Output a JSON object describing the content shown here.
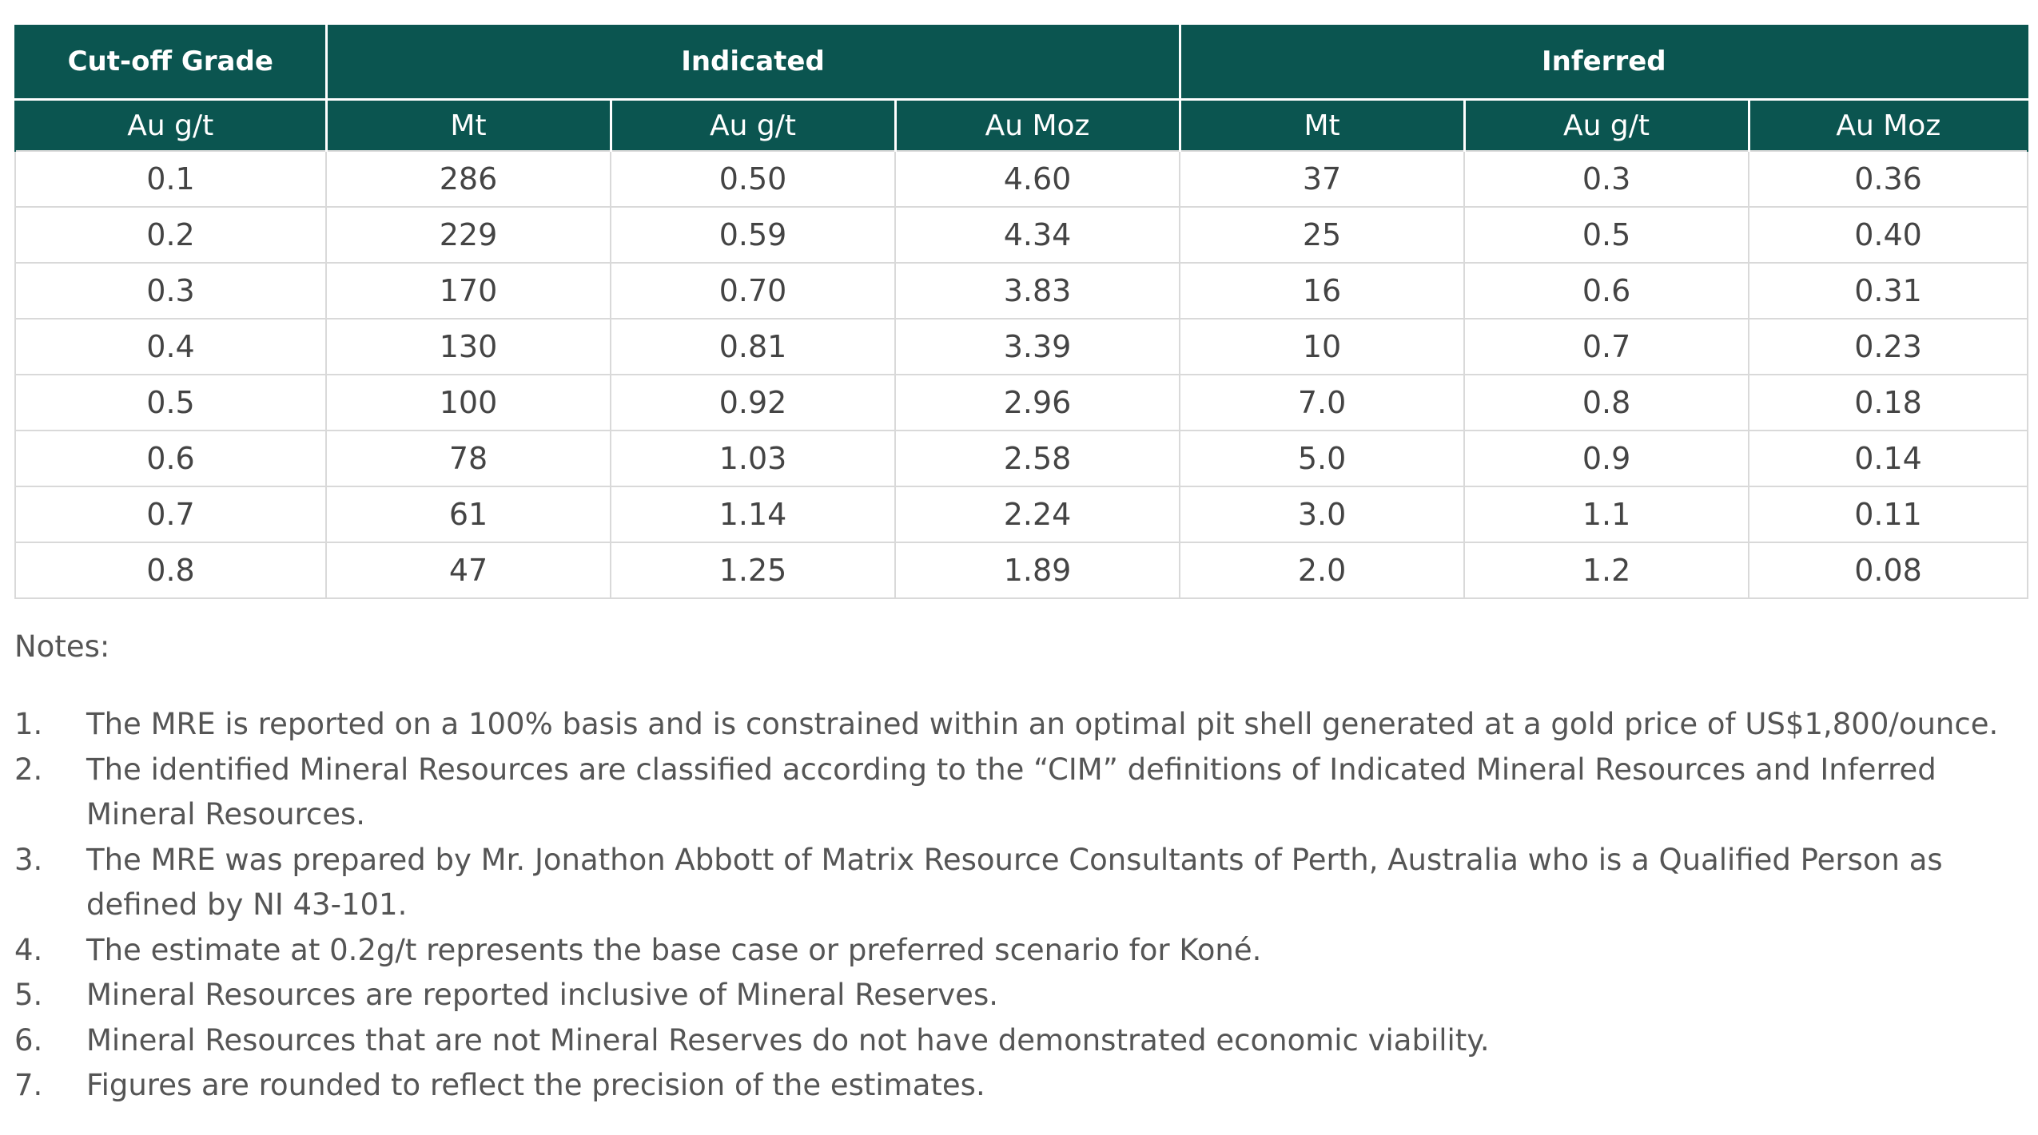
{
  "table": {
    "header_groups": [
      {
        "label": "Cut-off Grade"
      },
      {
        "label": "Indicated"
      },
      {
        "label": "Inferred"
      }
    ],
    "subheaders": [
      "Au g/t",
      "Mt",
      "Au g/t",
      "Au Moz",
      "Mt",
      "Au g/t",
      "Au Moz"
    ],
    "rows": [
      [
        "0.1",
        "286",
        "0.50",
        "4.60",
        "37",
        "0.3",
        "0.36"
      ],
      [
        "0.2",
        "229",
        "0.59",
        "4.34",
        "25",
        "0.5",
        "0.40"
      ],
      [
        "0.3",
        "170",
        "0.70",
        "3.83",
        "16",
        "0.6",
        "0.31"
      ],
      [
        "0.4",
        "130",
        "0.81",
        "3.39",
        "10",
        "0.7",
        "0.23"
      ],
      [
        "0.5",
        "100",
        "0.92",
        "2.96",
        "7.0",
        "0.8",
        "0.18"
      ],
      [
        "0.6",
        "78",
        "1.03",
        "2.58",
        "5.0",
        "0.9",
        "0.14"
      ],
      [
        "0.7",
        "61",
        "1.14",
        "2.24",
        "3.0",
        "1.1",
        "0.11"
      ],
      [
        "0.8",
        "47",
        "1.25",
        "1.89",
        "2.0",
        "1.2",
        "0.08"
      ]
    ]
  },
  "notes": {
    "title": "Notes:",
    "items": [
      {
        "num": "1.",
        "text": "The MRE is reported on a 100% basis and is constrained within an optimal pit shell generated at a gold price of US$1,800/ounce."
      },
      {
        "num": "2.",
        "text": "The identified Mineral Resources are classified according to the “CIM” definitions of Indicated Mineral Resources and Inferred Mineral Resources."
      },
      {
        "num": "3.",
        "text": "The MRE was prepared by Mr. Jonathon Abbott of Matrix Resource Consultants of Perth, Australia who is a Qualified Person as defined by NI 43-101."
      },
      {
        "num": "4.",
        "text": "The estimate at 0.2g/t represents the base case or preferred scenario for Koné."
      },
      {
        "num": "5.",
        "text": "Mineral Resources are reported inclusive of Mineral Reserves."
      },
      {
        "num": "6.",
        "text": "Mineral Resources that are not Mineral Reserves do not have demonstrated economic viability."
      },
      {
        "num": "7.",
        "text": "Figures are rounded to reflect the precision of the estimates."
      }
    ]
  },
  "colors": {
    "header_bg": "#0b5550",
    "header_text": "#ffffff",
    "grid_line": "#d9d9d9",
    "body_text": "#444444"
  }
}
